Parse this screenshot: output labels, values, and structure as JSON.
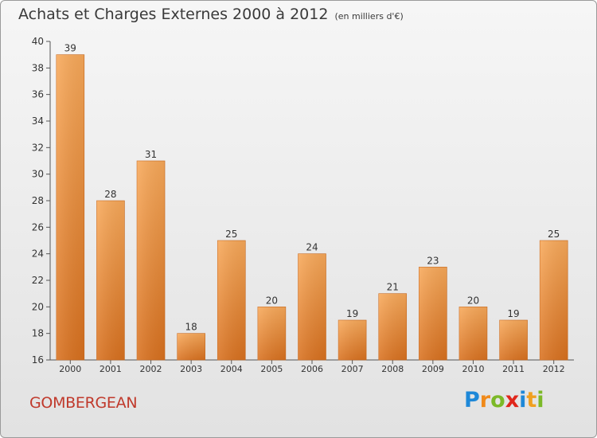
{
  "title": {
    "main": "Achats et Charges Externes 2000 à 2012",
    "unit": "(en milliers d'€)"
  },
  "place_name": "GOMBERGEAN",
  "logo": {
    "text": "Proxiti",
    "icon": "proxiti-logo"
  },
  "colors": {
    "bar_top": "#f8a95a",
    "bar_bottom": "#d9711f",
    "place_text": "#c0392b",
    "axis": "#555555"
  },
  "chart_data": {
    "type": "bar",
    "categories": [
      "2000",
      "2001",
      "2002",
      "2003",
      "2004",
      "2005",
      "2006",
      "2007",
      "2008",
      "2009",
      "2010",
      "2011",
      "2012"
    ],
    "values": [
      39,
      28,
      31,
      18,
      25,
      20,
      24,
      19,
      21,
      23,
      20,
      19,
      25
    ],
    "ylim": [
      16,
      40
    ],
    "yticks": [
      16,
      18,
      20,
      22,
      24,
      26,
      28,
      30,
      32,
      34,
      36,
      38,
      40
    ],
    "grid": false,
    "data_labels": true
  }
}
